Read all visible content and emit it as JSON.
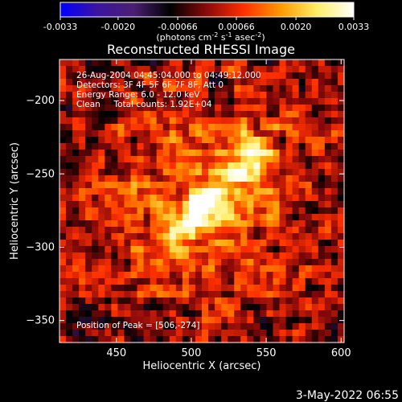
{
  "chart_data": {
    "type": "heatmap",
    "title": "Reconstructed RHESSI Image",
    "xlabel": "Heliocentric X (arcsec)",
    "ylabel": "Heliocentric Y (arcsec)",
    "xlim": [
      412,
      602
    ],
    "ylim": [
      -365,
      -172
    ],
    "x_ticks": [
      450,
      500,
      550,
      600
    ],
    "y_ticks": [
      -200,
      -250,
      -300,
      -350
    ],
    "colorbar": {
      "min": -0.0033,
      "max": 0.0033,
      "ticks": [
        -0.0033,
        -0.002,
        -0.00066,
        0.00066,
        0.002,
        0.0033
      ],
      "tick_labels": [
        "-0.0033",
        "-0.0020",
        "-0.00066",
        "0.00066",
        "0.0020",
        "0.0033"
      ],
      "units_main": "(photons cm",
      "units_exp1": "-2",
      "units_mid1": " s",
      "units_exp2": "-1",
      "units_mid2": " asec",
      "units_exp3": "-2",
      "units_end": ")",
      "colors": [
        "#0000ff",
        "#3b14a0",
        "#4b1f72",
        "#000000",
        "#8b0a0a",
        "#ff3000",
        "#ff9900",
        "#ffee66",
        "#ffffff"
      ]
    },
    "peak": {
      "x": 506,
      "y": -274,
      "value": 0.0033
    },
    "secondary_source": {
      "x": 540,
      "y": -240
    },
    "info_lines": [
      "26-Aug-2004 04:45:04.000 to 04:49:12.000",
      "Detectors: 3F 4F 5F 6F 7F 8F, Att 0",
      "Energy Range: 6.0 - 12.0 keV",
      "Clean     Total counts: 1.92E+04"
    ],
    "peak_label": "Position of Peak = [506,-274]"
  },
  "timestamp": "3-May-2022 06:55"
}
